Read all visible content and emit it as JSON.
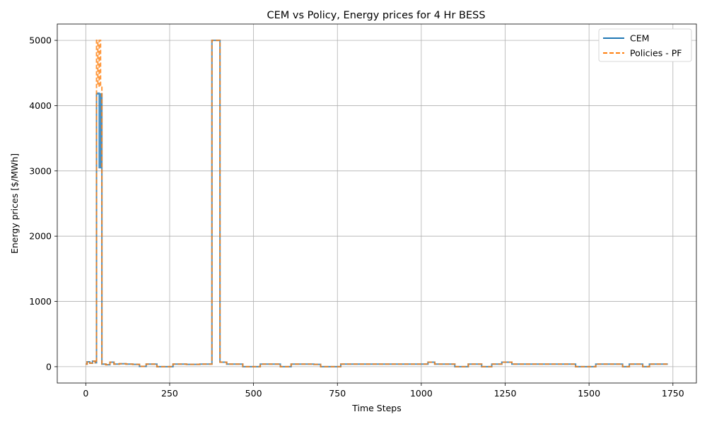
{
  "chart_data": {
    "type": "line",
    "title": "CEM vs Policy, Energy prices for 4 Hr BESS",
    "xlabel": "Time Steps",
    "ylabel": "Energy prices [$/MWh]",
    "xlim": [
      -85,
      1820
    ],
    "ylim": [
      -250,
      5250
    ],
    "xticks": [
      0,
      250,
      500,
      750,
      1000,
      1250,
      1500,
      1750
    ],
    "xtick_labels": [
      "0",
      "250",
      "500",
      "750",
      "1000",
      "1250",
      "1500",
      "1750"
    ],
    "yticks": [
      0,
      1000,
      2000,
      3000,
      4000,
      5000
    ],
    "ytick_labels": [
      "0",
      "1000",
      "2000",
      "3000",
      "4000",
      "5000"
    ],
    "grid": true,
    "legend_position": "top-right",
    "series": [
      {
        "name": "CEM",
        "color": "#1f77b4",
        "style": "solid",
        "x": [
          0,
          4,
          12,
          20,
          28,
          32,
          36,
          40,
          44,
          48,
          60,
          72,
          84,
          100,
          120,
          140,
          160,
          180,
          200,
          212,
          240,
          260,
          300,
          340,
          370,
          376,
          392,
          400,
          420,
          440,
          468,
          500,
          520,
          560,
          580,
          612,
          640,
          680,
          700,
          760,
          800,
          850,
          900,
          950,
          1000,
          1020,
          1040,
          1070,
          1100,
          1140,
          1180,
          1210,
          1240,
          1270,
          1300,
          1350,
          1400,
          1460,
          1500,
          1520,
          1560,
          1600,
          1620,
          1660,
          1680,
          1735
        ],
        "y": [
          40,
          75,
          55,
          85,
          60,
          4180,
          4190,
          3050,
          4180,
          40,
          30,
          70,
          40,
          45,
          40,
          35,
          5,
          40,
          40,
          0,
          0,
          40,
          35,
          40,
          40,
          5000,
          5000,
          70,
          40,
          40,
          0,
          0,
          40,
          40,
          0,
          40,
          40,
          35,
          0,
          40,
          40,
          40,
          40,
          40,
          40,
          70,
          40,
          40,
          0,
          40,
          0,
          40,
          70,
          40,
          40,
          40,
          40,
          0,
          0,
          40,
          40,
          0,
          40,
          0,
          40,
          40
        ]
      },
      {
        "name": "Policies - PF",
        "color": "#ff7f0e",
        "style": "dashed",
        "x": [
          0,
          4,
          12,
          20,
          28,
          32,
          36,
          40,
          44,
          48,
          60,
          72,
          84,
          100,
          120,
          140,
          160,
          180,
          200,
          212,
          240,
          260,
          300,
          340,
          370,
          376,
          392,
          400,
          420,
          440,
          468,
          500,
          520,
          560,
          580,
          612,
          640,
          680,
          700,
          760,
          800,
          850,
          900,
          950,
          1000,
          1020,
          1040,
          1070,
          1100,
          1140,
          1180,
          1210,
          1240,
          1270,
          1300,
          1350,
          1400,
          1460,
          1500,
          1520,
          1560,
          1600,
          1620,
          1660,
          1680,
          1735
        ],
        "y": [
          40,
          75,
          55,
          85,
          60,
          5000,
          4300,
          5000,
          4300,
          40,
          30,
          70,
          40,
          45,
          40,
          35,
          5,
          40,
          40,
          0,
          0,
          40,
          35,
          40,
          40,
          5000,
          5000,
          70,
          40,
          40,
          0,
          0,
          40,
          40,
          0,
          40,
          40,
          35,
          0,
          40,
          40,
          40,
          40,
          40,
          40,
          70,
          40,
          40,
          0,
          40,
          0,
          40,
          70,
          40,
          40,
          40,
          40,
          0,
          0,
          40,
          40,
          0,
          40,
          0,
          40,
          40
        ]
      }
    ]
  }
}
